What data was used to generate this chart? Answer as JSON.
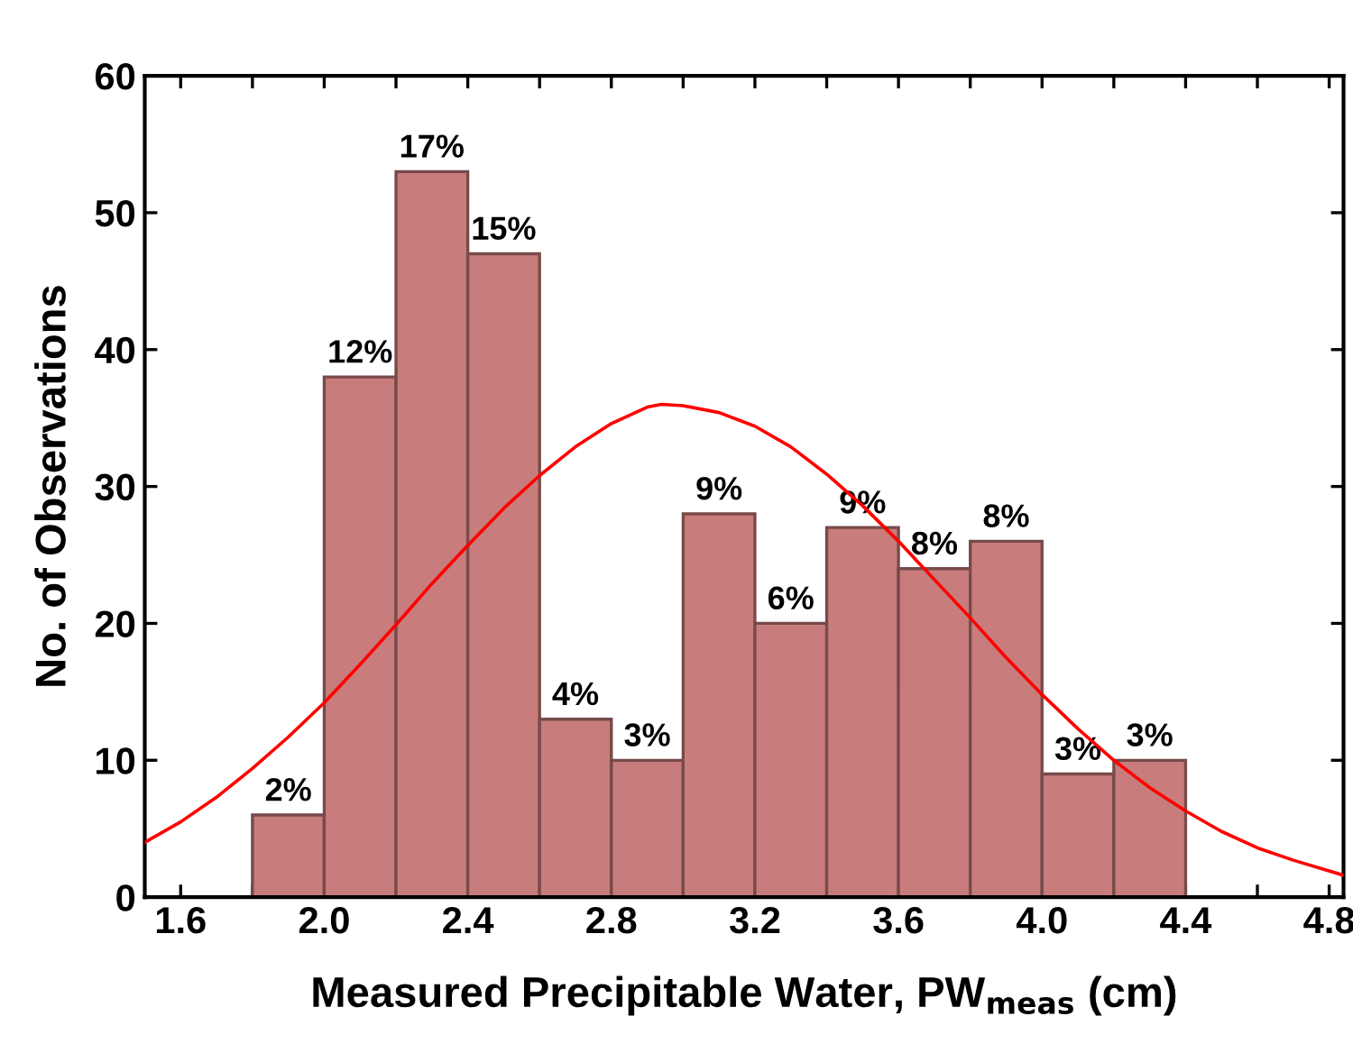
{
  "chart_data": {
    "type": "histogram",
    "xlabel": "Measured Precipitable Water, PW$_{meas}$ (cm)",
    "ylabel": "No. of Observations",
    "bins": [
      1.8,
      2.0,
      2.2,
      2.4,
      2.6,
      2.8,
      3.0,
      3.2,
      3.4,
      3.6,
      3.8,
      4.0,
      4.2,
      4.4
    ],
    "values": [
      6,
      38,
      53,
      47,
      13,
      10,
      28,
      20,
      27,
      24,
      26,
      9,
      10
    ],
    "color": "#c87c7c",
    "annotations": [
      {
        "text": "2%",
        "x": 1.9,
        "y": 6
      },
      {
        "text": "12%",
        "x": 2.1,
        "y": 38
      },
      {
        "text": "17%",
        "x": 2.3,
        "y": 53
      },
      {
        "text": "15%",
        "x": 2.5,
        "y": 47
      },
      {
        "text": "4%",
        "x": 2.7,
        "y": 13
      },
      {
        "text": "3%",
        "x": 2.9,
        "y": 10
      },
      {
        "text": "9%",
        "x": 3.1,
        "y": 28
      },
      {
        "text": "6%",
        "x": 3.3,
        "y": 20
      },
      {
        "text": "9%",
        "x": 3.5,
        "y": 27
      },
      {
        "text": "8%",
        "x": 3.7,
        "y": 24
      },
      {
        "text": "8%",
        "x": 3.9,
        "y": 26
      },
      {
        "text": "3%",
        "x": 4.1,
        "y": 9
      },
      {
        "text": "3%",
        "x": 4.3,
        "y": 10
      }
    ],
    "series": [
      {
        "type": "line",
        "color": "#ff0000",
        "x": [
          1.5,
          1.6,
          1.7,
          1.8,
          1.9,
          2.0,
          2.1,
          2.2,
          2.3,
          2.4,
          2.5,
          2.6,
          2.7,
          2.8,
          2.9,
          2.94,
          3.0,
          3.1,
          3.2,
          3.3,
          3.4,
          3.5,
          3.6,
          3.7,
          3.8,
          3.9,
          4.0,
          4.1,
          4.2,
          4.3,
          4.4,
          4.5,
          4.6,
          4.7,
          4.84
        ],
        "values": [
          4.0,
          5.5,
          7.3,
          9.4,
          11.7,
          14.2,
          17.0,
          19.9,
          22.9,
          25.7,
          28.4,
          30.8,
          32.9,
          34.6,
          35.8,
          36.0,
          35.9,
          35.4,
          34.4,
          32.9,
          30.9,
          28.6,
          26.0,
          23.2,
          20.4,
          17.5,
          14.8,
          12.3,
          10.0,
          8.0,
          6.3,
          4.8,
          3.6,
          2.7,
          1.6
        ]
      }
    ],
    "xlim": [
      1.5,
      4.84
    ],
    "ylim": [
      0,
      60
    ],
    "xticks": [
      1.6,
      {
        "value": 1.8,
        "label": null
      },
      {
        "value": 2.0,
        "label": "2.0"
      },
      {
        "value": 2.2,
        "label": null
      },
      2.4,
      {
        "value": 2.6,
        "label": null
      },
      2.8,
      {
        "value": 3.0,
        "label": null
      },
      3.2,
      {
        "value": 3.4,
        "label": null
      },
      3.6,
      {
        "value": 3.8,
        "label": null
      },
      {
        "value": 4.0,
        "label": "4.0"
      },
      {
        "value": 4.2,
        "label": null
      },
      4.4,
      {
        "value": 4.6,
        "label": null
      },
      4.8
    ],
    "yticks": [
      0,
      10,
      20,
      30,
      40,
      50,
      60
    ],
    "grid": false,
    "legend": false
  }
}
